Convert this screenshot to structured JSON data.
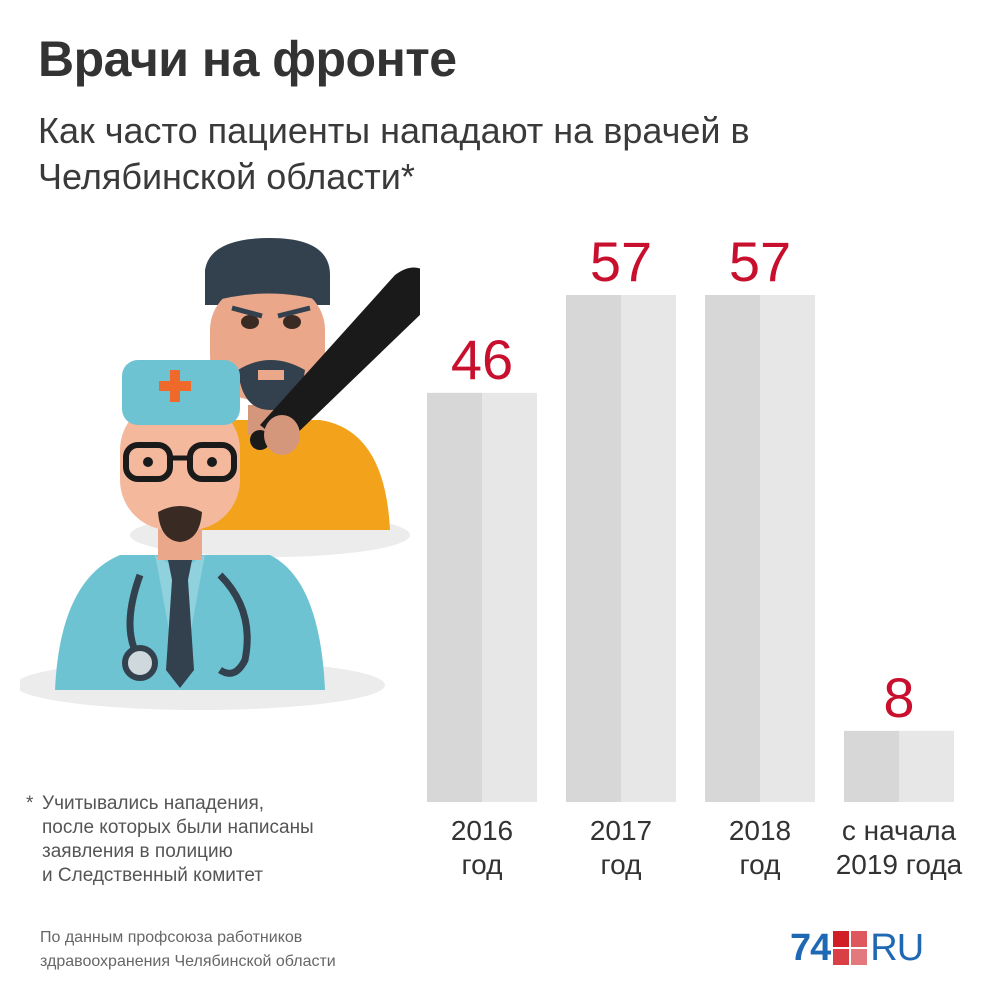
{
  "header": {
    "title": "Врачи на фронте",
    "subtitle": "Как часто пациенты нападают на врачей в Челябинской области*"
  },
  "footnote": {
    "star": "*",
    "lines": [
      "Учитывались нападения,",
      "после которых были написаны",
      "заявления в полицию",
      "и Следственный комитет"
    ]
  },
  "source": {
    "lines": [
      "По данным профсоюза работников",
      "здравоохранения Челябинской области"
    ]
  },
  "logo": {
    "number": "74",
    "suffix": "RU"
  },
  "colors": {
    "bar_light": "#e7e7e7",
    "bar_dark": "#d7d7d7",
    "value_label": "#c8102e",
    "logo_blue": "#1f69b4",
    "logo_red": "#d11f26"
  },
  "illustration": {
    "icons": [
      "doctor-icon",
      "attacker-icon",
      "baseball-bat-icon"
    ]
  },
  "chart_data": {
    "type": "bar",
    "title": "Как часто пациенты нападают на врачей в Челябинской области*",
    "categories": [
      [
        "2016",
        "год"
      ],
      [
        "2017",
        "год"
      ],
      [
        "2018",
        "год"
      ],
      [
        "с начала",
        "2019 года"
      ]
    ],
    "values": [
      46,
      57,
      57,
      8
    ],
    "ylim": [
      0,
      57
    ],
    "grid": false,
    "legend": "none"
  }
}
